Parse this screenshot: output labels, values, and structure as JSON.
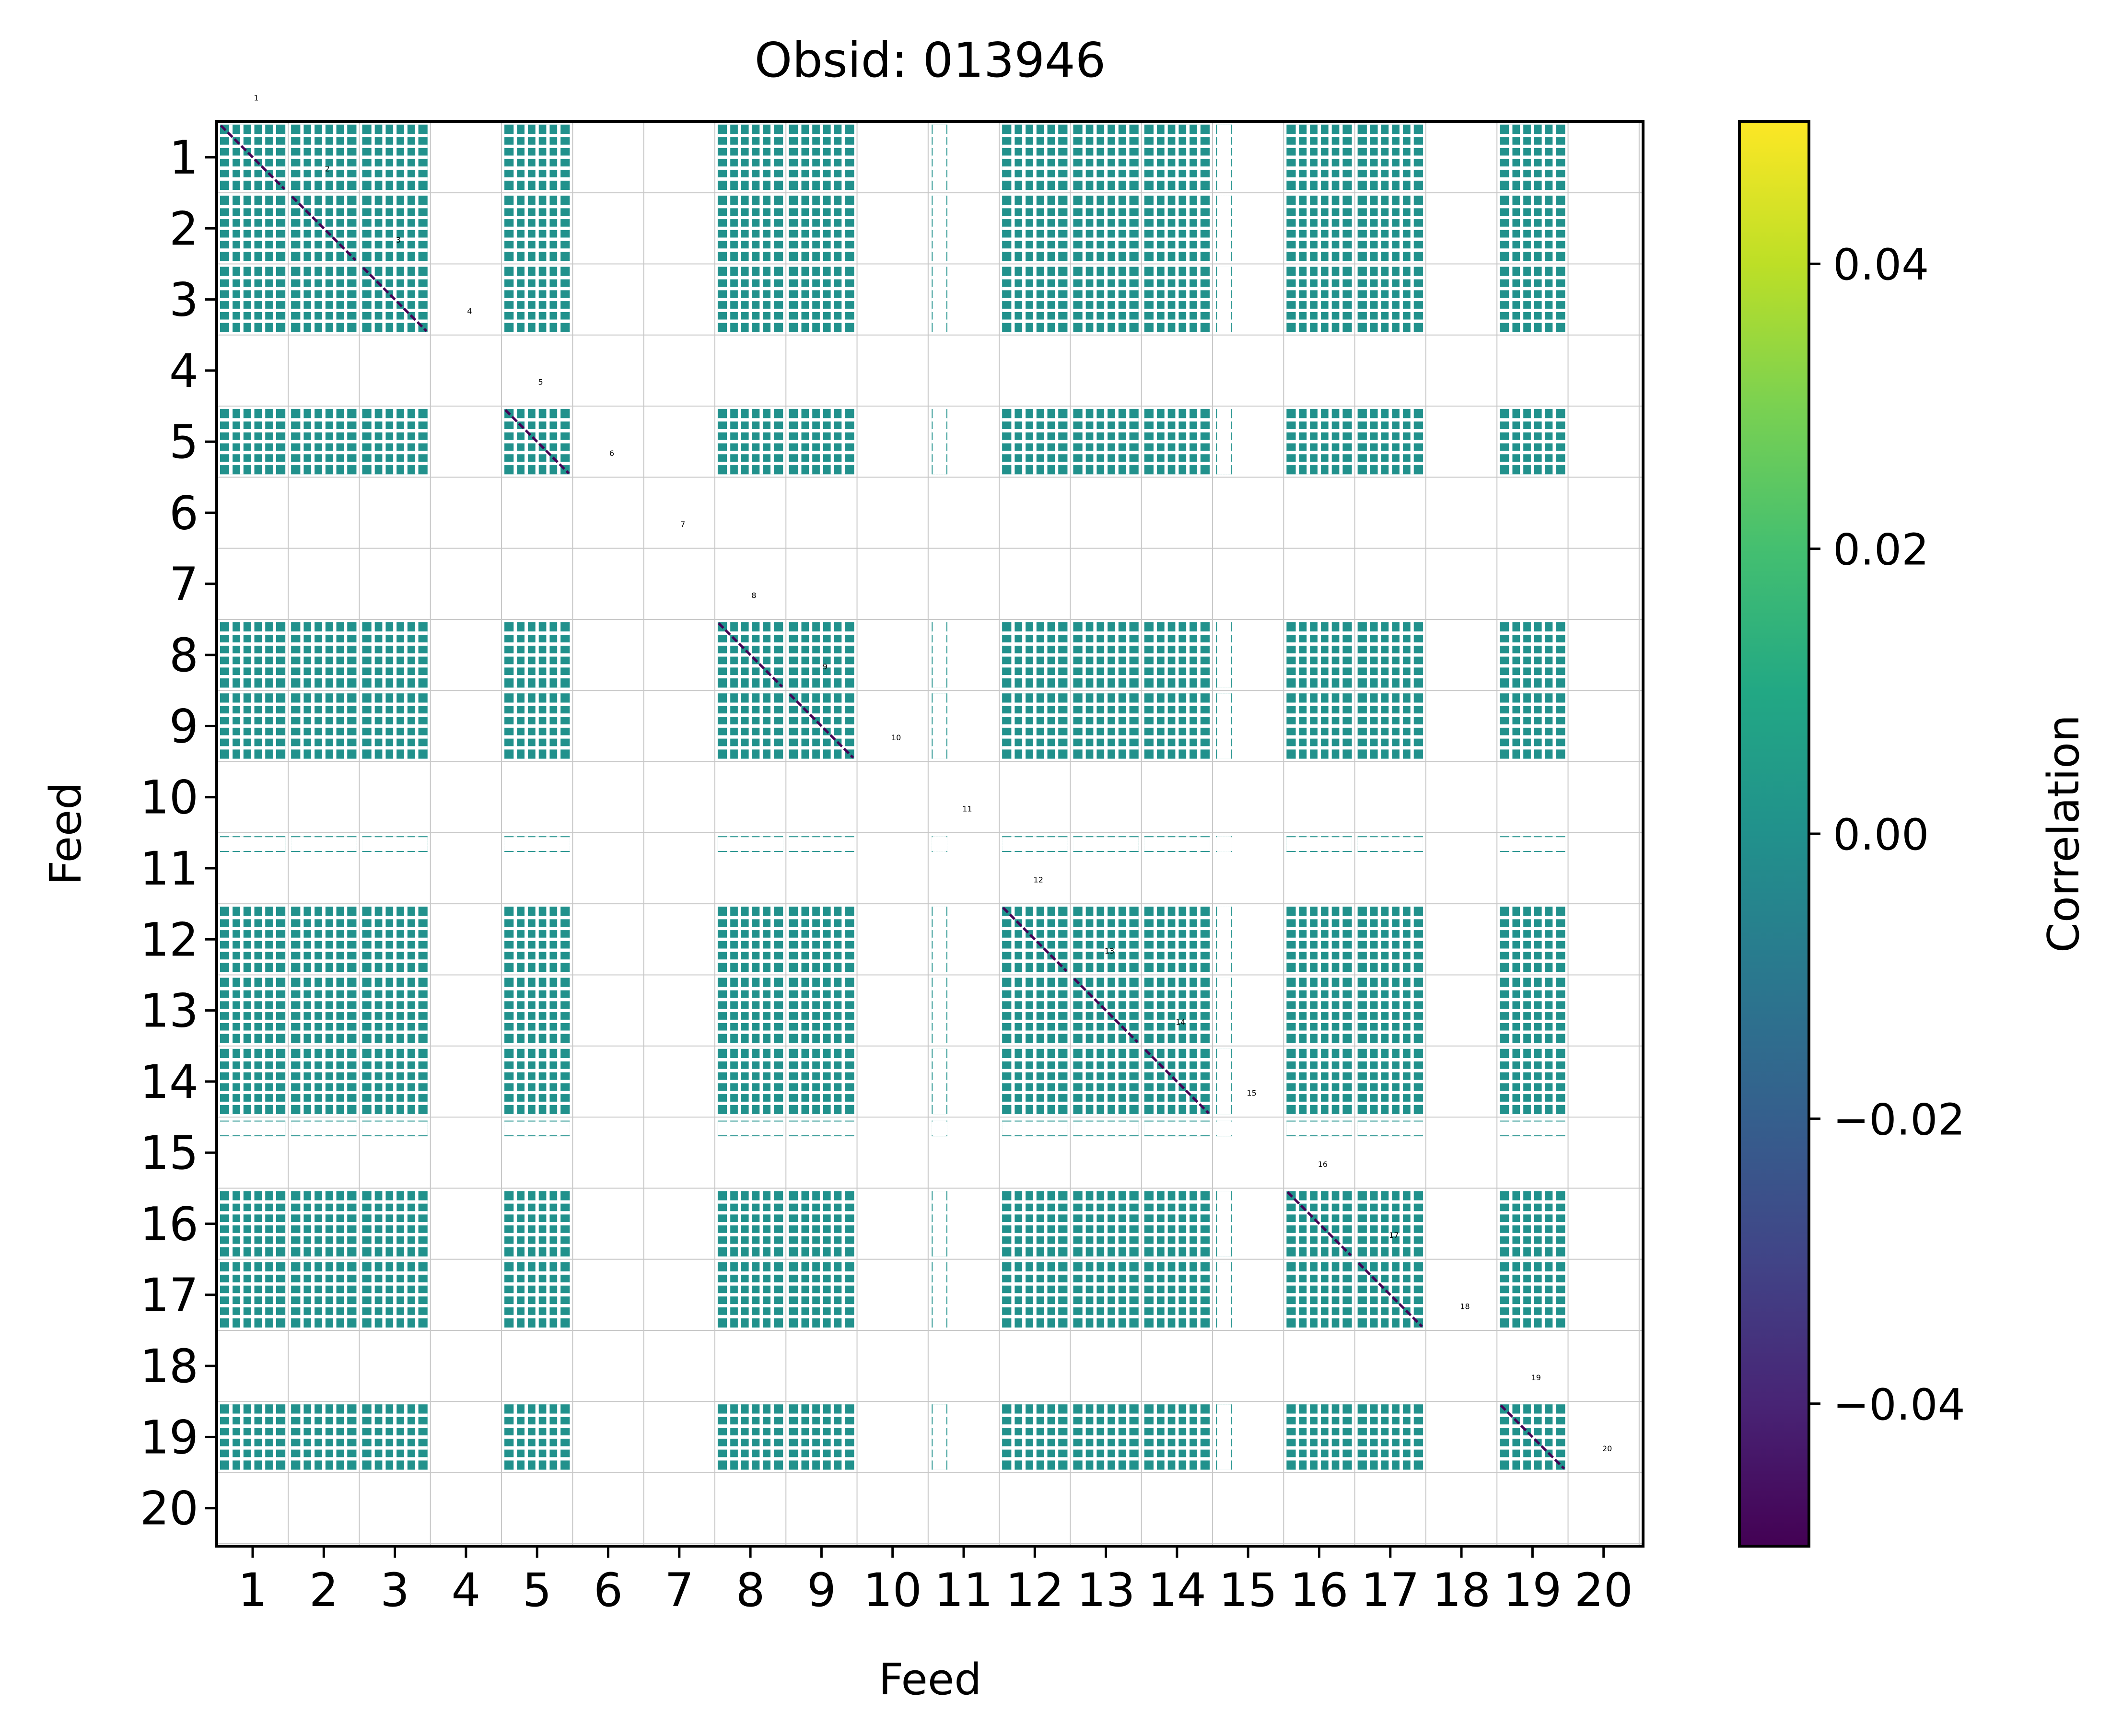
{
  "chart_data": {
    "type": "heatmap",
    "title": "Obsid: 013946",
    "xlabel": "Feed",
    "ylabel": "Feed",
    "feeds": [
      1,
      2,
      3,
      4,
      5,
      6,
      7,
      8,
      9,
      10,
      11,
      12,
      13,
      14,
      15,
      16,
      17,
      18,
      19,
      20
    ],
    "x_tick_labels": [
      "1",
      "2",
      "3",
      "4",
      "5",
      "6",
      "7",
      "8",
      "9",
      "10",
      "11",
      "12",
      "13",
      "14",
      "15",
      "16",
      "17",
      "18",
      "19",
      "20"
    ],
    "y_tick_labels": [
      "1",
      "2",
      "3",
      "4",
      "5",
      "6",
      "7",
      "8",
      "9",
      "10",
      "11",
      "12",
      "13",
      "14",
      "15",
      "16",
      "17",
      "18",
      "19",
      "20"
    ],
    "active_feeds": [
      1,
      2,
      3,
      5,
      8,
      9,
      12,
      13,
      14,
      16,
      17,
      19
    ],
    "partial_feeds": [
      11,
      15
    ],
    "empty_feeds": [
      4,
      6,
      7,
      10,
      18,
      20
    ],
    "block_value": 0.0,
    "diagonal_label_feeds": [
      1,
      2,
      3,
      4,
      5,
      6,
      7,
      8,
      9,
      10,
      11,
      12,
      13,
      14,
      15,
      16,
      17,
      18,
      19,
      20
    ],
    "grid": true,
    "colorbar": {
      "label": "Correlation",
      "colormap": "viridis",
      "range": [
        -0.05,
        0.05
      ],
      "ticks": [
        -0.04,
        -0.02,
        0.0,
        0.02,
        0.04
      ],
      "tick_labels": [
        "−0.04",
        "−0.02",
        "0.00",
        "0.02",
        "0.04"
      ]
    },
    "colors": {
      "cell": "#21918c",
      "diagonal": "#440154",
      "grid": "#c8c8c8"
    }
  }
}
